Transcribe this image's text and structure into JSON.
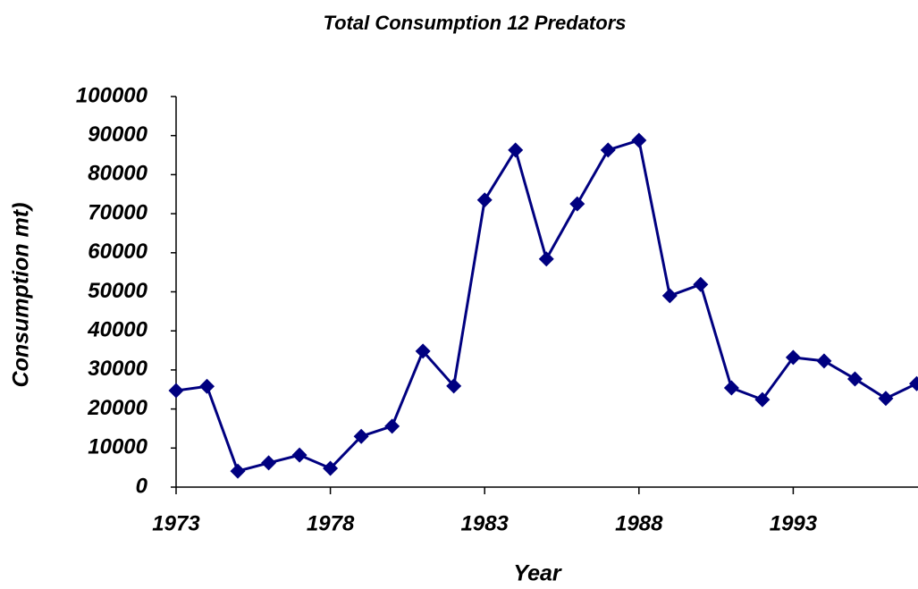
{
  "chart_data": {
    "type": "line",
    "title": "Total Consumption 12 Predators",
    "x_label": "Year",
    "y_label": "Consumption mt)",
    "x": [
      1973,
      1974,
      1975,
      1976,
      1977,
      1978,
      1979,
      1980,
      1981,
      1982,
      1983,
      1984,
      1985,
      1986,
      1987,
      1988,
      1989,
      1990,
      1991,
      1992,
      1993,
      1994,
      1995,
      1996,
      1997
    ],
    "series": [
      {
        "color": "#000080",
        "values": [
          24700,
          25800,
          4100,
          6200,
          8200,
          4800,
          13000,
          15600,
          34800,
          25900,
          73500,
          86300,
          58400,
          72500,
          86300,
          88800,
          49000,
          51900,
          25400,
          22400,
          33200,
          32300,
          27700,
          22700,
          26500
        ]
      }
    ],
    "xlim": [
      1973,
      1997
    ],
    "xticks": [
      1973,
      1978,
      1983,
      1988,
      1993
    ],
    "ylim": [
      0,
      100000
    ],
    "yticks": [
      0,
      10000,
      20000,
      30000,
      40000,
      50000,
      60000,
      70000,
      80000,
      90000,
      100000
    ],
    "grid": false
  }
}
